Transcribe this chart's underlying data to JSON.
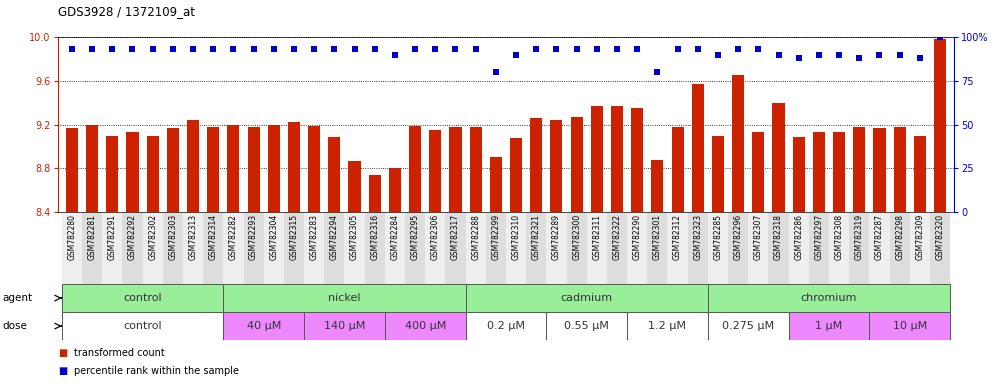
{
  "title": "GDS3928 / 1372109_at",
  "samples": [
    "GSM782280",
    "GSM782281",
    "GSM782291",
    "GSM782292",
    "GSM782302",
    "GSM782303",
    "GSM782313",
    "GSM782314",
    "GSM782282",
    "GSM782293",
    "GSM782304",
    "GSM782315",
    "GSM782283",
    "GSM782294",
    "GSM782305",
    "GSM782316",
    "GSM782284",
    "GSM782295",
    "GSM782306",
    "GSM782317",
    "GSM782288",
    "GSM782299",
    "GSM782310",
    "GSM782321",
    "GSM782289",
    "GSM782300",
    "GSM782311",
    "GSM782322",
    "GSM782290",
    "GSM782301",
    "GSM782312",
    "GSM782323",
    "GSM782285",
    "GSM782296",
    "GSM782307",
    "GSM782318",
    "GSM782286",
    "GSM782297",
    "GSM782308",
    "GSM782319",
    "GSM782287",
    "GSM782298",
    "GSM782309",
    "GSM782320"
  ],
  "bar_values": [
    9.17,
    9.2,
    9.1,
    9.13,
    9.1,
    9.17,
    9.24,
    9.18,
    9.2,
    9.18,
    9.2,
    9.22,
    9.19,
    9.09,
    8.87,
    8.74,
    8.8,
    9.19,
    9.15,
    9.18,
    9.18,
    8.9,
    9.08,
    9.26,
    9.24,
    9.27,
    9.37,
    9.37,
    9.35,
    8.88,
    9.18,
    9.57,
    9.1,
    9.65,
    9.13,
    9.4,
    9.09,
    9.13,
    9.13,
    9.18,
    9.17,
    9.18,
    9.1,
    9.98
  ],
  "percentile_values": [
    93,
    93,
    93,
    93,
    93,
    93,
    93,
    93,
    93,
    93,
    93,
    93,
    93,
    93,
    93,
    93,
    90,
    93,
    93,
    93,
    93,
    80,
    90,
    93,
    93,
    93,
    93,
    93,
    93,
    80,
    93,
    93,
    90,
    93,
    93,
    90,
    88,
    90,
    90,
    88,
    90,
    90,
    88,
    100
  ],
  "ymin": 8.4,
  "ymax": 10.0,
  "yticks_left": [
    8.4,
    8.8,
    9.2,
    9.6,
    10.0
  ],
  "yticks_right": [
    0,
    25,
    50,
    75,
    100
  ],
  "bar_color": "#cc2200",
  "dot_color": "#0000cc",
  "agent_groups": [
    {
      "label": "control",
      "start": 0,
      "end": 7,
      "color": "#99ee99"
    },
    {
      "label": "nickel",
      "start": 8,
      "end": 19,
      "color": "#99ee99"
    },
    {
      "label": "cadmium",
      "start": 20,
      "end": 31,
      "color": "#99ee99"
    },
    {
      "label": "chromium",
      "start": 32,
      "end": 43,
      "color": "#99ee99"
    }
  ],
  "dose_groups": [
    {
      "label": "control",
      "start": 0,
      "end": 7,
      "color": "#ffffff"
    },
    {
      "label": "40 μM",
      "start": 8,
      "end": 11,
      "color": "#ee88ff"
    },
    {
      "label": "140 μM",
      "start": 12,
      "end": 15,
      "color": "#ee88ff"
    },
    {
      "label": "400 μM",
      "start": 16,
      "end": 19,
      "color": "#ee88ff"
    },
    {
      "label": "0.2 μM",
      "start": 20,
      "end": 23,
      "color": "#ffffff"
    },
    {
      "label": "0.55 μM",
      "start": 24,
      "end": 27,
      "color": "#ffffff"
    },
    {
      "label": "1.2 μM",
      "start": 28,
      "end": 31,
      "color": "#ffffff"
    },
    {
      "label": "0.275 μM",
      "start": 32,
      "end": 35,
      "color": "#ffffff"
    },
    {
      "label": "1 μM",
      "start": 36,
      "end": 39,
      "color": "#ee88ff"
    },
    {
      "label": "10 μM",
      "start": 40,
      "end": 43,
      "color": "#ee88ff"
    }
  ]
}
